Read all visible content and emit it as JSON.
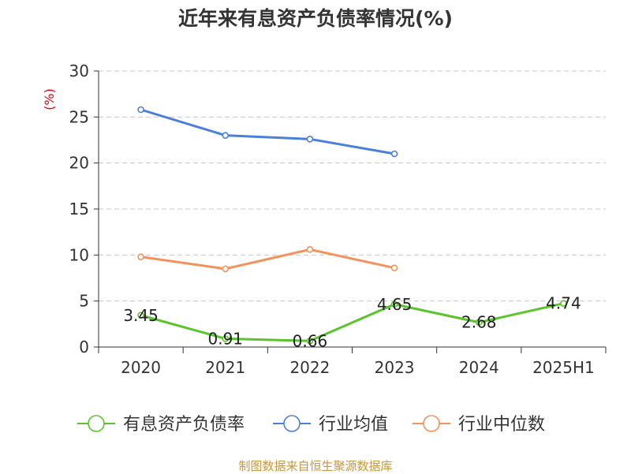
{
  "title": "近年来有息资产负债率情况(%)",
  "footer": "制图数据来自恒生聚源数据库",
  "chart_data": {
    "type": "line",
    "title": "近年来有息资产负债率情况(%)",
    "ylabel": "(%)",
    "categories": [
      "2020",
      "2021",
      "2022",
      "2023",
      "2024",
      "2025H1"
    ],
    "ylim": [
      0,
      30
    ],
    "yticks": [
      0,
      5,
      10,
      15,
      20,
      25,
      30
    ],
    "grid": true,
    "legend_position": "bottom",
    "series": [
      {
        "name": "有息资产负债率",
        "color": "#5ac52a",
        "values": [
          3.45,
          0.91,
          0.66,
          4.65,
          2.68,
          4.74
        ],
        "labels": [
          "3.45",
          "0.91",
          "0.66",
          "4.65",
          "2.68",
          "4.74"
        ]
      },
      {
        "name": "行业均值",
        "color": "#4a7fdc",
        "values": [
          25.8,
          23.0,
          22.6,
          21.0,
          null,
          null
        ]
      },
      {
        "name": "行业中位数",
        "color": "#f5915a",
        "values": [
          9.8,
          8.5,
          10.6,
          8.6,
          null,
          null
        ]
      }
    ]
  }
}
